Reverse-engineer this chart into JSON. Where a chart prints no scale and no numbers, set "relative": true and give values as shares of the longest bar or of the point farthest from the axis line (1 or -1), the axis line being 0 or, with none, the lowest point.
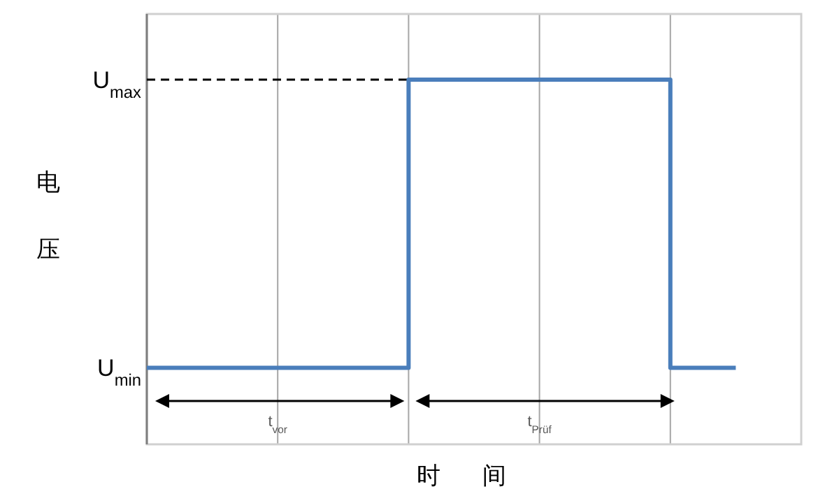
{
  "chart_data": {
    "type": "step",
    "relative": true,
    "xlabel": "时间",
    "ylabel": "电压",
    "categories": [
      null,
      null,
      null,
      null,
      null,
      null,
      null,
      null,
      null,
      null
    ],
    "series": [
      {
        "color": "#4a7ebb",
        "values": [
          0.21,
          0.21,
          0.21,
          0.21,
          1,
          1,
          1,
          1,
          0.21,
          0.21
        ]
      }
    ],
    "ref_lines": [
      {
        "axis": "y",
        "value": 1,
        "color": "#000000",
        "line_style": "dashed"
      }
    ],
    "annotations": [
      "U$_{max}$",
      "U$_{min}$",
      "t$_{vor}$",
      "t$_{Prüf}$"
    ],
    "grid": "x",
    "line_style": "solid",
    "marker": "none"
  }
}
